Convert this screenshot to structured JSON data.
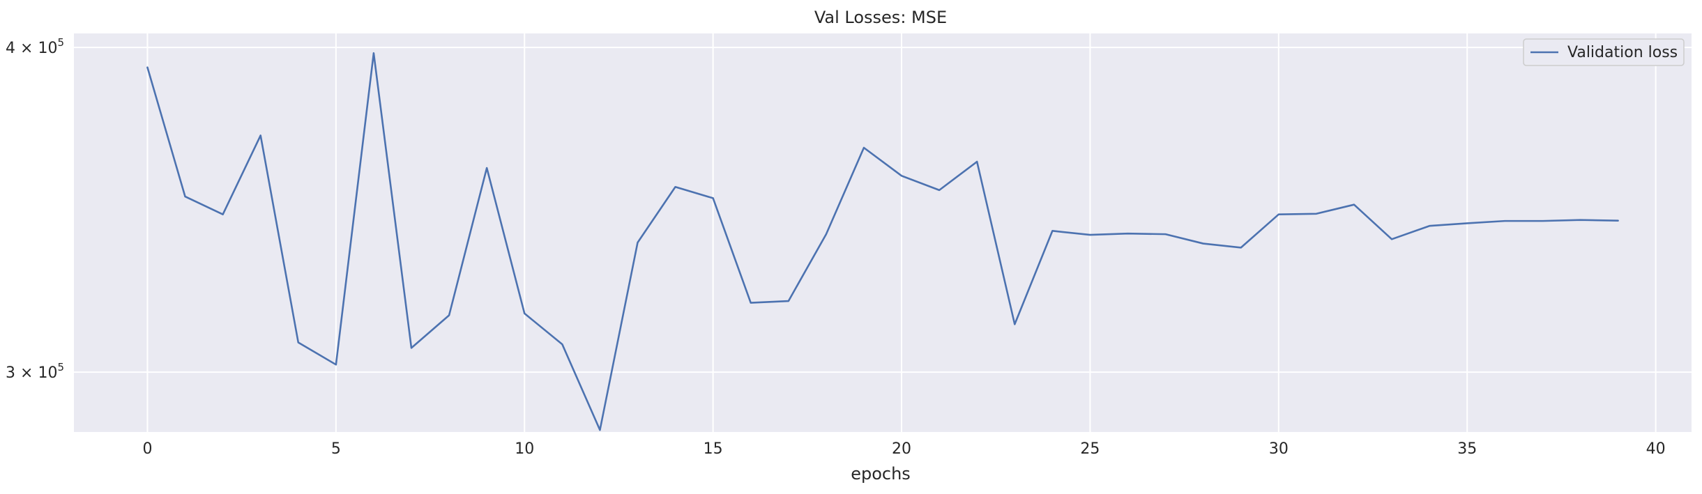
{
  "chart_data": {
    "type": "line",
    "title": "Val Losses:  MSE",
    "xlabel": "epochs",
    "ylabel": "",
    "yscale": "log",
    "xlim": [
      -1.95,
      40.95
    ],
    "ylim": [
      284500,
      405000
    ],
    "xticks": [
      0,
      5,
      10,
      15,
      20,
      25,
      30,
      35,
      40
    ],
    "yticks": [
      {
        "value": 300000,
        "mantissa": "3",
        "base": "10",
        "exp": "5"
      },
      {
        "value": 400000,
        "mantissa": "4",
        "base": "10",
        "exp": "5"
      }
    ],
    "grid": true,
    "legend": {
      "position": "top-right"
    },
    "colors": {
      "background": "#eaeaf2",
      "grid": "#ffffff",
      "line": "#4c72b0"
    },
    "series": [
      {
        "name": "Validation loss",
        "x": [
          0,
          1,
          2,
          3,
          4,
          5,
          6,
          7,
          8,
          9,
          10,
          11,
          12,
          13,
          14,
          15,
          16,
          17,
          18,
          19,
          20,
          21,
          22,
          23,
          24,
          25,
          26,
          27,
          28,
          29,
          30,
          31,
          32,
          33,
          34,
          35,
          36,
          37,
          38,
          39
        ],
        "y": [
          393000,
          350500,
          345000,
          370000,
          308000,
          302000,
          398000,
          306500,
          315500,
          359500,
          316000,
          307500,
          285000,
          336500,
          353500,
          350000,
          319000,
          319500,
          339000,
          366000,
          357000,
          352500,
          361500,
          313000,
          340000,
          338800,
          339200,
          339000,
          336200,
          335000,
          345000,
          345200,
          348000,
          337500,
          341500,
          342300,
          343000,
          343000,
          343300,
          343100
        ]
      }
    ]
  }
}
